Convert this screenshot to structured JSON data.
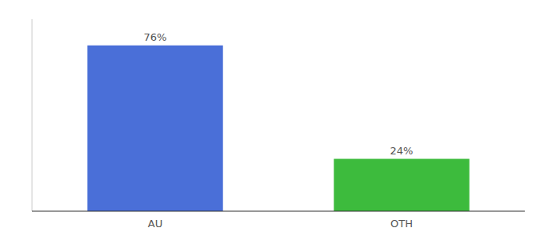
{
  "chart_data": {
    "type": "bar",
    "categories": [
      "AU",
      "OTH"
    ],
    "values": [
      76,
      24
    ],
    "value_labels": [
      "76%",
      "24%"
    ],
    "colors": [
      "#4a6fd8",
      "#3dbb3d"
    ],
    "ylim": [
      0,
      88
    ],
    "data_labels": true,
    "tick_labels": "x"
  }
}
